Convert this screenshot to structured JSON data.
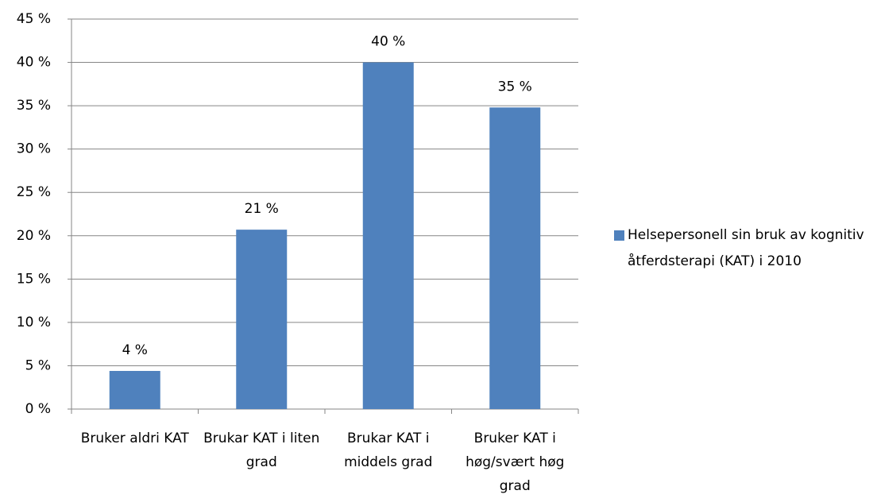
{
  "chart_data": {
    "type": "bar",
    "categories": [
      "Bruker aldri KAT",
      "Brukar KAT i liten grad",
      "Brukar KAT i middels grad",
      "Bruker KAT i høg/svært høg grad"
    ],
    "series": [
      {
        "name": "Helsepersonell sin bruk av kognitiv åtferdsterapi (KAT) i 2010",
        "color": "#4f81bd",
        "values": [
          4.4,
          20.7,
          40,
          34.8
        ],
        "value_labels": [
          "4 %",
          "21 %",
          "40 %",
          "35 %"
        ]
      }
    ],
    "ylim": [
      0,
      45
    ],
    "yticks": [
      {
        "value": 0,
        "label": "0 %"
      },
      {
        "value": 5,
        "label": "5 %"
      },
      {
        "value": 10,
        "label": "10 %"
      },
      {
        "value": 15,
        "label": "15 %"
      },
      {
        "value": 20,
        "label": "20 %"
      },
      {
        "value": 25,
        "label": "25 %"
      },
      {
        "value": 30,
        "label": "30 %"
      },
      {
        "value": 35,
        "label": "35 %"
      },
      {
        "value": 40,
        "label": "40 %"
      },
      {
        "value": 45,
        "label": "45 %"
      }
    ],
    "grid": true,
    "legend": "right"
  }
}
